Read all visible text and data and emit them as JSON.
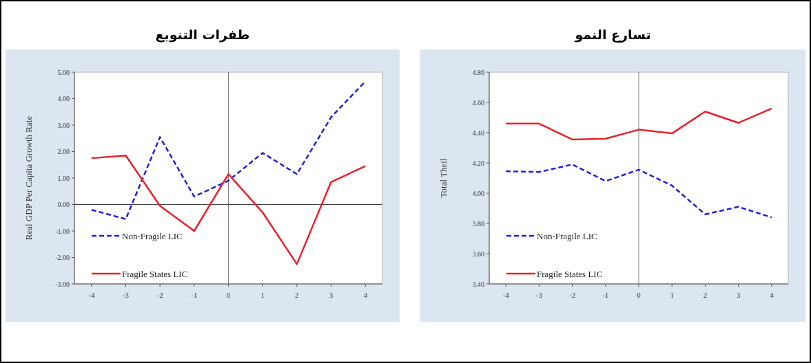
{
  "chart_data": [
    {
      "type": "line",
      "title": "طفرات التنويع",
      "ylabel": "Real GDP Per Capita Growth Rate",
      "x": [
        -4,
        -3,
        -2,
        -1,
        0,
        1,
        2,
        3,
        4
      ],
      "xlim": [
        -4.5,
        4.5
      ],
      "xticks": [
        -4,
        -3,
        -2,
        -1,
        0,
        1,
        2,
        3,
        4
      ],
      "ylim": [
        -3,
        5
      ],
      "yticks": [
        {
          "value": 5,
          "label": "5.00"
        },
        {
          "value": 4,
          "label": "4.00"
        },
        {
          "value": 3,
          "label": "3.00"
        },
        {
          "value": 2,
          "label": "2.00"
        },
        {
          "value": 1,
          "label": "1.00"
        },
        {
          "value": 0,
          "label": "0.00"
        },
        {
          "value": -1,
          "label": "-1.00"
        },
        {
          "value": -2,
          "label": "-2.00"
        },
        {
          "value": -3,
          "label": "-3.00"
        }
      ],
      "legend": "bottom left",
      "grid": false,
      "marker": "none",
      "ref_lines": [
        {
          "axis": "x",
          "value": 0,
          "color": "#808080"
        },
        {
          "axis": "y",
          "value": 0,
          "color": "#404040"
        }
      ],
      "series": [
        {
          "name": "Non-Fragile LIC",
          "color": "#1f1fd6",
          "line_style": "dashed",
          "values": [
            -0.2,
            -0.55,
            2.55,
            0.3,
            0.9,
            1.95,
            1.15,
            3.3,
            4.65
          ]
        },
        {
          "name": "Fragile States LIC",
          "color": "#e8202a",
          "line_style": "solid",
          "values": [
            1.75,
            1.85,
            -0.05,
            -1.0,
            1.15,
            -0.3,
            -2.25,
            0.85,
            1.45
          ]
        }
      ]
    },
    {
      "type": "line",
      "title": "تسارع النمو",
      "ylabel": "Total Theil",
      "x": [
        -4,
        -3,
        -2,
        -1,
        0,
        1,
        2,
        3,
        4
      ],
      "xlim": [
        -4.5,
        4.5
      ],
      "xticks": [
        -4,
        -3,
        -2,
        -1,
        0,
        1,
        2,
        3,
        4
      ],
      "ylim": [
        3.4,
        4.8
      ],
      "yticks": [
        {
          "value": 4.8,
          "label": "4.80"
        },
        {
          "value": 4.6,
          "label": "4.60"
        },
        {
          "value": 4.4,
          "label": "4.40"
        },
        {
          "value": 4.2,
          "label": "4.20"
        },
        {
          "value": 4.0,
          "label": "4.00"
        },
        {
          "value": 3.8,
          "label": "3.80"
        },
        {
          "value": 3.6,
          "label": "3.60"
        },
        {
          "value": 3.4,
          "label": "3.40"
        }
      ],
      "legend": "bottom left",
      "grid": false,
      "marker": "none",
      "ref_lines": [
        {
          "axis": "x",
          "value": 0,
          "color": "#808080"
        }
      ],
      "series": [
        {
          "name": "Non-Fragile LIC",
          "color": "#1f1fd6",
          "line_style": "dashed",
          "values": [
            4.145,
            4.14,
            4.19,
            4.08,
            4.155,
            4.05,
            3.86,
            3.91,
            3.84
          ]
        },
        {
          "name": "Fragile States LIC",
          "color": "#e8202a",
          "line_style": "solid",
          "values": [
            4.46,
            4.46,
            4.355,
            4.36,
            4.42,
            4.395,
            4.54,
            4.465,
            4.56
          ]
        }
      ]
    }
  ]
}
